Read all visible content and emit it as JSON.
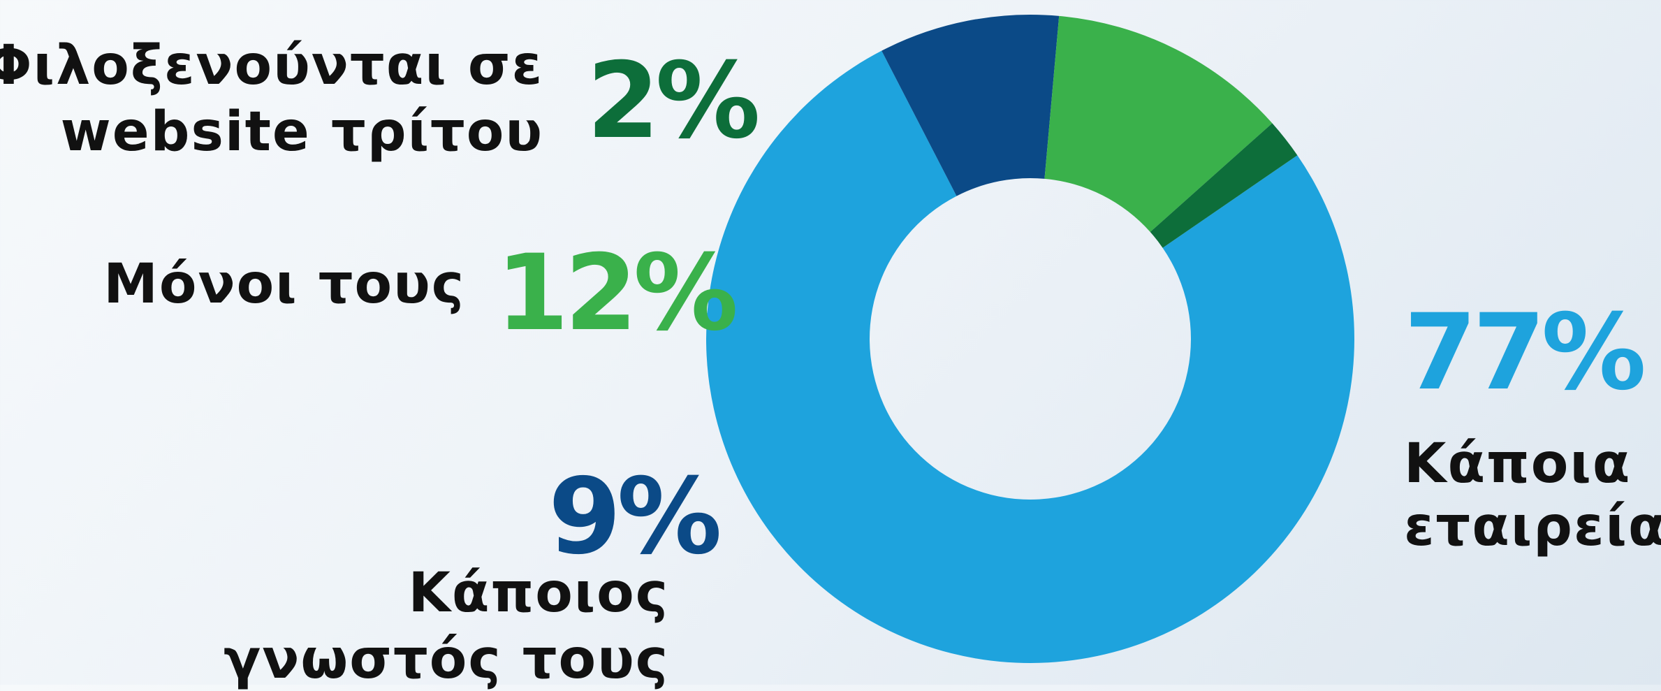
{
  "chart_data": {
    "type": "pie",
    "donut": true,
    "slices": [
      {
        "label": "Κάποια εταιρεία",
        "value": 77,
        "value_label": "77%",
        "color": "#1ea3dd"
      },
      {
        "label": "Κάποιος γνωστός τους",
        "value": 9,
        "value_label": "9%",
        "color": "#0b4a87"
      },
      {
        "label": "Μόνοι τους",
        "value": 12,
        "value_label": "12%",
        "color": "#3ab14b"
      },
      {
        "label": "Φιλοξενούνται σε website τρίτου",
        "value": 2,
        "value_label": "2%",
        "color": "#0d6e3a"
      }
    ]
  },
  "labels": {
    "third_party_line1": "Φιλοξενούνται σε",
    "third_party_line2": "website τρίτου",
    "third_party_pct": "2%",
    "self_text": "Μόνοι τους",
    "self_pct": "12%",
    "acquaintance_pct": "9%",
    "acquaintance_line1": "Κάποιος",
    "acquaintance_line2": "γνωστός τους",
    "company_pct": "77%",
    "company_line1": "Κάποια",
    "company_line2": "εταιρεία"
  }
}
